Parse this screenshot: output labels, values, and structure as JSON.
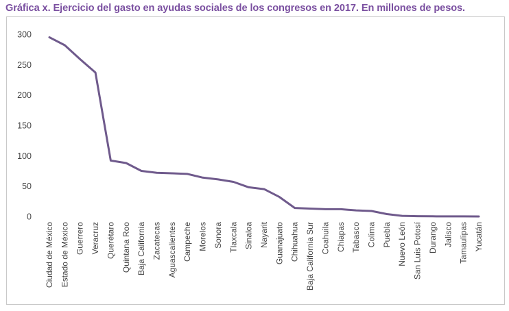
{
  "title": "Gráfica x. Ejercicio del gasto en ayudas sociales de los congresos en 2017. En millones de pesos.",
  "chart_data": {
    "type": "line",
    "title": "Gráfica x. Ejercicio del gasto en ayudas sociales de los congresos en 2017. En millones de pesos.",
    "xlabel": "",
    "ylabel": "",
    "ylim": [
      0,
      300
    ],
    "yticks": [
      0,
      50,
      100,
      150,
      200,
      250,
      300
    ],
    "grid": false,
    "legend": "none",
    "color": "#6f5a8c",
    "categories": [
      "Ciudad de México",
      "Estado de México",
      "Guerrero",
      "Veracruz",
      "Querétaro",
      "Quintana Roo",
      "Baja California",
      "Zacatecas",
      "Aguascalientes",
      "Campeche",
      "Morelos",
      "Sonora",
      "Tlaxcala",
      "Sinaloa",
      "Nayarit",
      "Guanajuato",
      "Chihuahua",
      "Baja California Sur",
      "Coahuila",
      "Chiapas",
      "Tabasco",
      "Colima",
      "Puebla",
      "Nuevo León",
      "San Luis Potosí",
      "Durango",
      "Jalisco",
      "Tamaulipas",
      "Yucatán"
    ],
    "series": [
      {
        "values": [
          295,
          282,
          259,
          237,
          92,
          88,
          75,
          72,
          71,
          70,
          64,
          61,
          57,
          48,
          45,
          32,
          14,
          13,
          12,
          12,
          10,
          9,
          4,
          1,
          0.5,
          0.2,
          0.1,
          0.1,
          0
        ]
      }
    ]
  }
}
